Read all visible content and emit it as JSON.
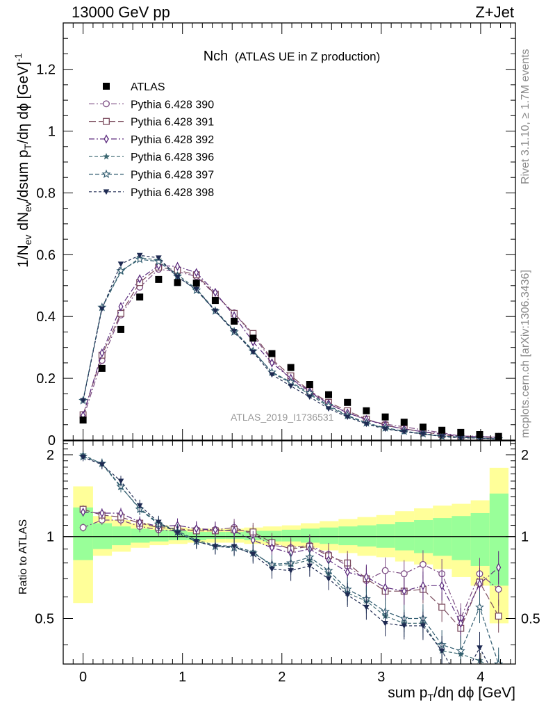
{
  "header": {
    "left": "13000 GeV pp",
    "right": "Z+Jet",
    "rivet": "Rivet 3.1.10, ≥ 1.7M events",
    "mcplots": "mcplots.cern.ch [arXiv:1306.3436]"
  },
  "chart_data": [
    {
      "type": "scatter",
      "panel": "main",
      "title": "Nch",
      "subtitle": "(ATLAS UE in Z production)",
      "xlabel": "sum p_T/dη dϕ [GeV]",
      "ylabel": "1/N_ev dN_ev/dsum p_T/dη dϕ [GeV]^-1",
      "watermark": "ATLAS_2019_I1736531",
      "xlim": [
        -0.2,
        4.35
      ],
      "ylim": [
        0,
        1.35
      ],
      "yticks": [
        0,
        0.2,
        0.4,
        0.6,
        0.8,
        1,
        1.2
      ],
      "yticklabels": [
        "0",
        "0.2",
        "0.4",
        "0.6",
        "0.8",
        "1",
        "1.2"
      ],
      "legend_position": "top-left",
      "x": [
        0,
        0.19,
        0.38,
        0.57,
        0.76,
        0.95,
        1.14,
        1.33,
        1.52,
        1.71,
        1.9,
        2.09,
        2.28,
        2.47,
        2.66,
        2.85,
        3.04,
        3.23,
        3.42,
        3.61,
        3.8,
        3.99,
        4.18
      ],
      "series": [
        {
          "name": "ATLAS",
          "color": "#000000",
          "marker": "filled-square",
          "dash": "none",
          "values": [
            0.065,
            0.232,
            0.358,
            0.463,
            0.52,
            0.51,
            0.508,
            0.452,
            0.385,
            0.33,
            0.28,
            0.235,
            0.18,
            0.147,
            0.122,
            0.095,
            0.075,
            0.058,
            0.042,
            0.032,
            0.025,
            0.018,
            0.012
          ]
        },
        {
          "name": "Pythia 6.428 390",
          "color": "#7b4a82",
          "marker": "open-circle",
          "dash": "8 3 2 3",
          "values": [
            0.07,
            0.258,
            0.405,
            0.495,
            0.553,
            0.545,
            0.53,
            0.47,
            0.412,
            0.338,
            0.258,
            0.198,
            0.155,
            0.117,
            0.09,
            0.065,
            0.052,
            0.043,
            0.033,
            0.024,
            0.013,
            0.013,
            0.008
          ]
        },
        {
          "name": "Pythia 6.428 391",
          "color": "#7a4a5c",
          "marker": "open-square",
          "dash": "10 4",
          "values": [
            0.082,
            0.275,
            0.41,
            0.51,
            0.56,
            0.55,
            0.535,
            0.472,
            0.41,
            0.345,
            0.262,
            0.208,
            0.16,
            0.122,
            0.095,
            0.068,
            0.048,
            0.037,
            0.027,
            0.018,
            0.011,
            0.012,
            0.006
          ]
        },
        {
          "name": "Pythia 6.428 392",
          "color": "#5b2a7d",
          "marker": "open-diamond",
          "dash": "8 3 2 3",
          "values": [
            0.08,
            0.282,
            0.432,
            0.522,
            0.565,
            0.562,
            0.542,
            0.478,
            0.402,
            0.318,
            0.25,
            0.2,
            0.158,
            0.118,
            0.088,
            0.067,
            0.048,
            0.036,
            0.027,
            0.021,
            0.012,
            0.012,
            0.009
          ]
        },
        {
          "name": "Pythia 6.428 396",
          "color": "#3a6670",
          "marker": "filled-star",
          "dash": "5 3",
          "values": [
            0.13,
            0.428,
            0.545,
            0.59,
            0.583,
            0.535,
            0.49,
            0.42,
            0.355,
            0.29,
            0.218,
            0.185,
            0.148,
            0.108,
            0.078,
            0.055,
            0.038,
            0.028,
            0.02,
            0.012,
            0.009,
            0.006,
            0.004
          ]
        },
        {
          "name": "Pythia 6.428 397",
          "color": "#2e5a6e",
          "marker": "open-star",
          "dash": "6 3",
          "values": [
            0.128,
            0.43,
            0.548,
            0.585,
            0.578,
            0.53,
            0.485,
            0.418,
            0.35,
            0.288,
            0.22,
            0.188,
            0.152,
            0.112,
            0.08,
            0.056,
            0.04,
            0.029,
            0.021,
            0.013,
            0.01,
            0.007,
            0.004
          ]
        },
        {
          "name": "Pythia 6.428 398",
          "color": "#1e2a52",
          "marker": "filled-triangle-down",
          "dash": "4 3",
          "values": [
            0.128,
            0.425,
            0.57,
            0.598,
            0.59,
            0.528,
            0.488,
            0.418,
            0.352,
            0.285,
            0.212,
            0.175,
            0.14,
            0.102,
            0.075,
            0.052,
            0.036,
            0.027,
            0.02,
            0.012,
            0.007,
            0.007,
            0.003
          ]
        }
      ]
    },
    {
      "type": "scatter",
      "panel": "ratio",
      "ylabel": "Ratio to ATLAS",
      "xlabel": "sum p_T/dη dϕ [GeV]",
      "xlim": [
        -0.2,
        4.35
      ],
      "ylim": [
        0.34,
        2.25
      ],
      "yticks": [
        0.5,
        1,
        2
      ],
      "yticklabels": [
        "0.5",
        "1",
        "2"
      ],
      "xticks": [
        0,
        1,
        2,
        3,
        4
      ],
      "xticklabels": [
        "0",
        "1",
        "2",
        "3",
        "4"
      ],
      "band_edges": [
        -0.1,
        0.1,
        0.29,
        0.48,
        0.67,
        0.86,
        1.05,
        1.24,
        1.43,
        1.62,
        1.81,
        2.0,
        2.19,
        2.38,
        2.57,
        2.76,
        2.95,
        3.14,
        3.33,
        3.52,
        3.71,
        3.9,
        4.09,
        4.28
      ],
      "band_yellow_low": [
        0.57,
        0.85,
        0.88,
        0.91,
        0.93,
        0.94,
        0.95,
        0.95,
        0.95,
        0.94,
        0.93,
        0.92,
        0.91,
        0.89,
        0.87,
        0.85,
        0.84,
        0.81,
        0.79,
        0.76,
        0.71,
        0.66,
        0.48
      ],
      "band_yellow_high": [
        1.53,
        1.19,
        1.15,
        1.12,
        1.1,
        1.08,
        1.07,
        1.07,
        1.07,
        1.08,
        1.09,
        1.1,
        1.12,
        1.14,
        1.16,
        1.18,
        1.2,
        1.24,
        1.27,
        1.3,
        1.32,
        1.36,
        1.79
      ],
      "band_green_low": [
        0.82,
        0.9,
        0.93,
        0.95,
        0.96,
        0.97,
        0.97,
        0.98,
        0.98,
        0.97,
        0.96,
        0.96,
        0.95,
        0.94,
        0.93,
        0.92,
        0.91,
        0.89,
        0.87,
        0.85,
        0.82,
        0.78,
        0.66
      ],
      "band_green_high": [
        1.28,
        1.12,
        1.09,
        1.07,
        1.06,
        1.05,
        1.04,
        1.04,
        1.04,
        1.05,
        1.05,
        1.06,
        1.07,
        1.08,
        1.09,
        1.1,
        1.11,
        1.13,
        1.15,
        1.17,
        1.19,
        1.22,
        1.44
      ],
      "x": [
        0,
        0.19,
        0.38,
        0.57,
        0.76,
        0.95,
        1.14,
        1.33,
        1.52,
        1.71,
        1.9,
        2.09,
        2.28,
        2.47,
        2.66,
        2.85,
        3.04,
        3.23,
        3.42,
        3.61,
        3.8,
        3.99,
        4.18
      ],
      "series": [
        {
          "name": "Pythia 6.428 390",
          "color": "#7b4a82",
          "marker": "open-circle",
          "dash": "8 3 2 3",
          "values": [
            1.08,
            1.15,
            1.15,
            1.09,
            1.06,
            1.05,
            1.06,
            1.06,
            1.08,
            1.02,
            0.93,
            0.91,
            0.93,
            0.86,
            0.78,
            0.69,
            0.75,
            0.73,
            0.79,
            0.73,
            0.5,
            0.73,
            0.64
          ]
        },
        {
          "name": "Pythia 6.428 391",
          "color": "#7a4a5c",
          "marker": "open-square",
          "dash": "10 4",
          "values": [
            1.26,
            1.2,
            1.18,
            1.12,
            1.08,
            1.07,
            1.05,
            1.05,
            1.06,
            1.04,
            0.95,
            0.9,
            0.92,
            0.85,
            0.8,
            0.7,
            0.63,
            0.63,
            0.64,
            0.55,
            0.46,
            0.68,
            0.51
          ]
        },
        {
          "name": "Pythia 6.428 392",
          "color": "#5b2a7d",
          "marker": "open-diamond",
          "dash": "8 3 2 3",
          "values": [
            1.23,
            1.22,
            1.22,
            1.13,
            1.09,
            1.1,
            1.07,
            1.06,
            1.05,
            0.97,
            0.91,
            0.87,
            0.9,
            0.82,
            0.74,
            0.71,
            0.65,
            0.63,
            0.66,
            0.66,
            0.48,
            0.67,
            0.77
          ]
        },
        {
          "name": "Pythia 6.428 396",
          "color": "#3a6670",
          "marker": "filled-star",
          "dash": "5 3",
          "values": [
            2.0,
            1.85,
            1.52,
            1.27,
            1.12,
            1.05,
            0.97,
            0.93,
            0.92,
            0.88,
            0.78,
            0.79,
            0.82,
            0.73,
            0.62,
            0.58,
            0.51,
            0.48,
            0.48,
            0.38,
            0.37,
            0.35,
            0.32
          ]
        },
        {
          "name": "Pythia 6.428 397",
          "color": "#2e5a6e",
          "marker": "open-star",
          "dash": "6 3",
          "values": [
            1.97,
            1.86,
            1.53,
            1.26,
            1.11,
            1.04,
            0.96,
            0.92,
            0.91,
            0.87,
            0.79,
            0.8,
            0.84,
            0.75,
            0.64,
            0.59,
            0.53,
            0.5,
            0.5,
            0.4,
            0.38,
            0.55,
            0.34
          ]
        },
        {
          "name": "Pythia 6.428 398",
          "color": "#1e2a52",
          "marker": "filled-triangle-down",
          "dash": "4 3",
          "values": [
            1.96,
            1.84,
            1.6,
            1.3,
            1.13,
            1.03,
            0.96,
            0.92,
            0.92,
            0.86,
            0.76,
            0.75,
            0.78,
            0.7,
            0.61,
            0.55,
            0.48,
            0.47,
            0.47,
            0.38,
            0.29,
            0.39,
            0.29
          ]
        }
      ]
    }
  ]
}
